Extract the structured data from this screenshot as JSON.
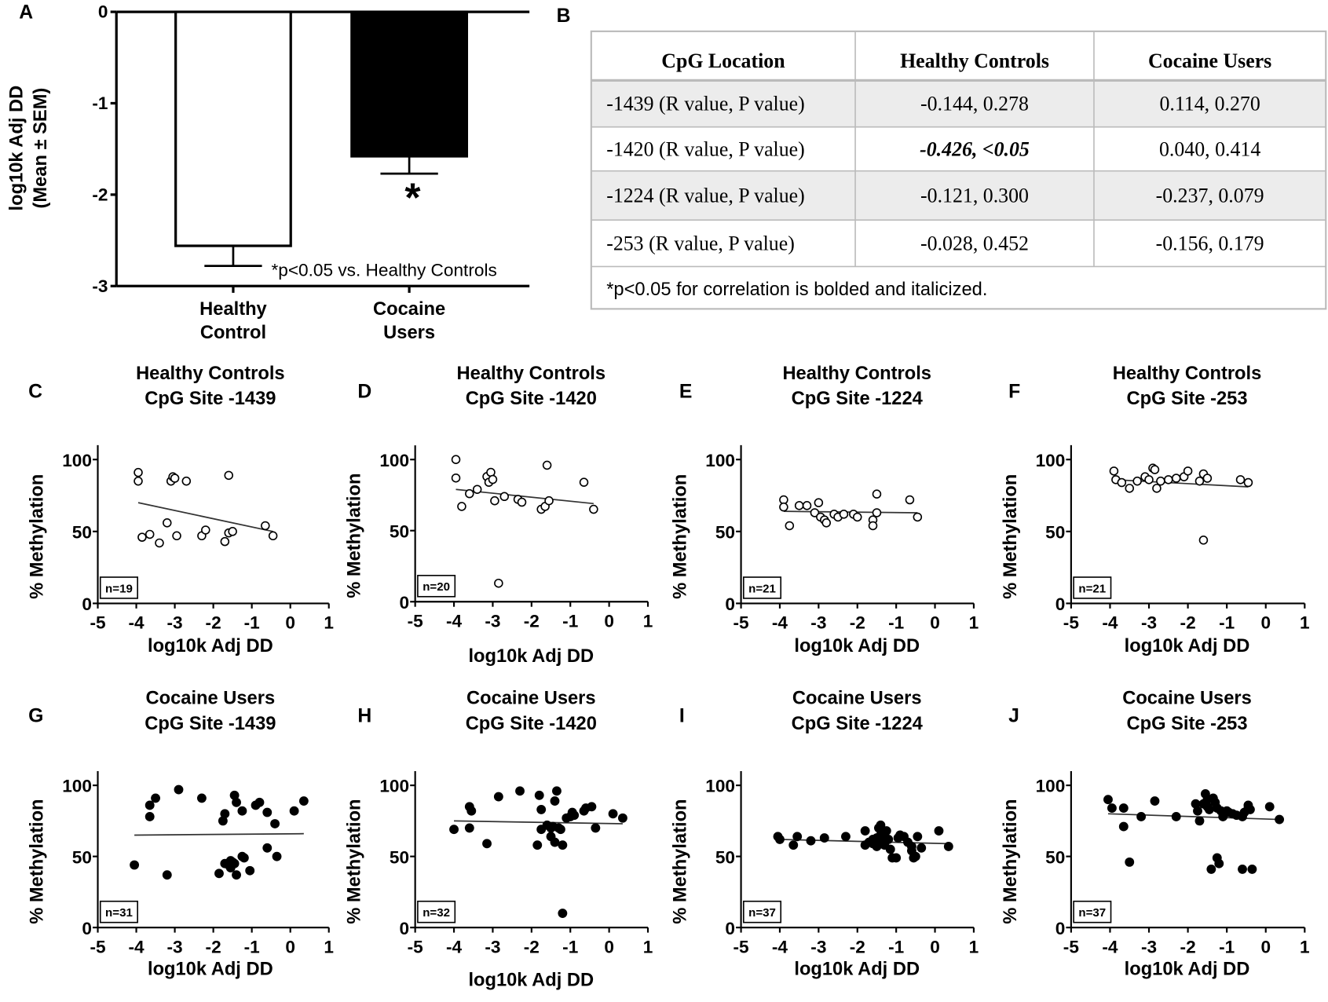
{
  "panel_letters": [
    "A",
    "B",
    "C",
    "D",
    "E",
    "F",
    "G",
    "H",
    "I",
    "J"
  ],
  "table": {
    "headers": [
      "CpG Location",
      "Healthy Controls",
      "Cocaine Users"
    ],
    "rows": [
      [
        "-1439 (R value,  P value)",
        "-0.144, 0.278",
        "0.114, 0.270"
      ],
      [
        "-1420 (R value,  P value)",
        "-0.426, <0.05",
        "0.040, 0.414"
      ],
      [
        "-1224 (R value,  P value)",
        "-0.121, 0.300",
        "-0.237, 0.079"
      ],
      [
        "-253 (R value,  P value)",
        "-0.028, 0.452",
        "-0.156, 0.179"
      ]
    ],
    "highlighted_cell": [
      1,
      1
    ],
    "footnote": "*p<0.05 for correlation is bolded and italicized."
  },
  "chart_data": [
    {
      "type": "bar",
      "panel": "A",
      "categories": [
        [
          "Healthy",
          "Control"
        ],
        [
          "Cocaine",
          "Users"
        ]
      ],
      "values": [
        -2.56,
        -1.58
      ],
      "sem": [
        0.22,
        0.19
      ],
      "colors": [
        "#ffffff",
        "#000000"
      ],
      "ylabel": [
        "log10k Adj DD",
        "(Mean ± SEM)"
      ],
      "ylim": [
        -3,
        0
      ],
      "yticks": [
        "0",
        "-1",
        "-2",
        "-3"
      ],
      "significance_marker": "*",
      "annotation": "*p<0.05 vs. Healthy Controls"
    },
    {
      "type": "scatter",
      "panel": "C",
      "title": [
        "Healthy Controls",
        "CpG Site -1439"
      ],
      "n_label": "n=19",
      "filled": false,
      "xlabel": "log10k Adj DD",
      "ylabel": "% Methylation",
      "xlim": [
        -5,
        1
      ],
      "ylim": [
        0,
        100
      ],
      "xticks": [
        "-5",
        "-4",
        "-3",
        "-2",
        "-1",
        "0",
        "1"
      ],
      "yticks": [
        "0",
        "50",
        "100"
      ],
      "points": [
        [
          -3.95,
          91
        ],
        [
          -3.95,
          85
        ],
        [
          -3.85,
          46
        ],
        [
          -3.65,
          48
        ],
        [
          -3.4,
          42
        ],
        [
          -3.2,
          56
        ],
        [
          -3.1,
          85
        ],
        [
          -3.05,
          88
        ],
        [
          -3.0,
          87
        ],
        [
          -2.95,
          47
        ],
        [
          -2.7,
          85
        ],
        [
          -2.3,
          47
        ],
        [
          -2.2,
          51
        ],
        [
          -1.7,
          43
        ],
        [
          -1.6,
          89
        ],
        [
          -1.6,
          49
        ],
        [
          -1.5,
          50
        ],
        [
          -0.65,
          54
        ],
        [
          -0.45,
          47
        ]
      ],
      "fit": [
        [
          -3.95,
          70
        ],
        [
          -0.45,
          50
        ]
      ]
    },
    {
      "type": "scatter",
      "panel": "D",
      "title": [
        "Healthy Controls",
        "CpG Site -1420"
      ],
      "n_label": "n=20",
      "filled": false,
      "xlabel": "log10k Adj DD",
      "ylabel": "% Methylation",
      "xlim": [
        -5,
        1
      ],
      "ylim": [
        0,
        100
      ],
      "xticks": [
        "-5",
        "-4",
        "-3",
        "-2",
        "-1",
        "0",
        "1"
      ],
      "yticks": [
        "0",
        "50",
        "100"
      ],
      "points": [
        [
          -3.95,
          100
        ],
        [
          -3.95,
          87
        ],
        [
          -3.8,
          67
        ],
        [
          -3.6,
          76
        ],
        [
          -3.4,
          79
        ],
        [
          -3.15,
          88
        ],
        [
          -3.1,
          84
        ],
        [
          -3.05,
          91
        ],
        [
          -3.0,
          86
        ],
        [
          -2.95,
          71
        ],
        [
          -2.85,
          13
        ],
        [
          -2.7,
          74
        ],
        [
          -2.35,
          72
        ],
        [
          -2.25,
          70
        ],
        [
          -1.75,
          65
        ],
        [
          -1.65,
          67
        ],
        [
          -1.6,
          96
        ],
        [
          -1.55,
          71
        ],
        [
          -0.65,
          84
        ],
        [
          -0.4,
          65
        ]
      ],
      "fit": [
        [
          -3.95,
          79
        ],
        [
          -0.4,
          69
        ]
      ]
    },
    {
      "type": "scatter",
      "panel": "E",
      "title": [
        "Healthy Controls",
        "CpG  Site -1224"
      ],
      "n_label": "n=21",
      "filled": false,
      "xlabel": "log10k Adj DD",
      "ylabel": "% Methylation",
      "xlim": [
        -5,
        1
      ],
      "ylim": [
        0,
        100
      ],
      "xticks": [
        "-5",
        "-4",
        "-3",
        "-2",
        "-1",
        "0",
        "1"
      ],
      "yticks": [
        "0",
        "50",
        "100"
      ],
      "points": [
        [
          -3.9,
          72
        ],
        [
          -3.9,
          67
        ],
        [
          -3.75,
          54
        ],
        [
          -3.5,
          68
        ],
        [
          -3.3,
          68
        ],
        [
          -3.1,
          63
        ],
        [
          -3.0,
          70
        ],
        [
          -2.95,
          60
        ],
        [
          -2.85,
          58
        ],
        [
          -2.8,
          56
        ],
        [
          -2.6,
          62
        ],
        [
          -2.5,
          60
        ],
        [
          -2.35,
          62
        ],
        [
          -2.1,
          62
        ],
        [
          -2.0,
          60
        ],
        [
          -1.6,
          58
        ],
        [
          -1.6,
          54
        ],
        [
          -1.5,
          63
        ],
        [
          -1.5,
          76
        ],
        [
          -0.65,
          72
        ],
        [
          -0.45,
          60
        ]
      ],
      "fit": [
        [
          -3.9,
          64
        ],
        [
          -0.45,
          63
        ]
      ]
    },
    {
      "type": "scatter",
      "panel": "F",
      "title": [
        "Healthy Controls",
        "CpG Site -253"
      ],
      "n_label": "n=21",
      "filled": false,
      "xlabel": "log10k Adj DD",
      "ylabel": "% Methylation",
      "xlim": [
        -5,
        1
      ],
      "ylim": [
        0,
        100
      ],
      "xticks": [
        "-5",
        "-4",
        "-3",
        "-2",
        "-1",
        "0",
        "1"
      ],
      "yticks": [
        "0",
        "50",
        "100"
      ],
      "points": [
        [
          -3.9,
          92
        ],
        [
          -3.85,
          86
        ],
        [
          -3.7,
          84
        ],
        [
          -3.5,
          80
        ],
        [
          -3.3,
          85
        ],
        [
          -3.1,
          88
        ],
        [
          -3.0,
          86
        ],
        [
          -2.9,
          94
        ],
        [
          -2.85,
          93
        ],
        [
          -2.8,
          80
        ],
        [
          -2.7,
          85
        ],
        [
          -2.5,
          86
        ],
        [
          -2.3,
          87
        ],
        [
          -2.1,
          88
        ],
        [
          -2.0,
          92
        ],
        [
          -1.7,
          85
        ],
        [
          -1.6,
          90
        ],
        [
          -1.5,
          87
        ],
        [
          -1.6,
          44
        ],
        [
          -0.65,
          86
        ],
        [
          -0.45,
          84
        ]
      ],
      "fit": [
        [
          -3.9,
          86
        ],
        [
          -0.45,
          81
        ]
      ]
    },
    {
      "type": "scatter",
      "panel": "G",
      "title": [
        "Cocaine Users",
        "CpG Site -1439"
      ],
      "n_label": "n=31",
      "filled": true,
      "xlabel": "log10k Adj DD",
      "ylabel": "% Methylation",
      "xlim": [
        -5,
        1
      ],
      "ylim": [
        0,
        100
      ],
      "xticks": [
        "-5",
        "-4",
        "-3",
        "-2",
        "-1",
        "0",
        "1"
      ],
      "yticks": [
        "0",
        "50",
        "100"
      ],
      "points": [
        [
          -4.05,
          44
        ],
        [
          -3.65,
          86
        ],
        [
          -3.65,
          78
        ],
        [
          -3.5,
          91
        ],
        [
          -3.2,
          37
        ],
        [
          -2.9,
          97
        ],
        [
          -2.3,
          91
        ],
        [
          -1.85,
          38
        ],
        [
          -1.75,
          75
        ],
        [
          -1.7,
          80
        ],
        [
          -1.7,
          45
        ],
        [
          -1.6,
          44
        ],
        [
          -1.55,
          42
        ],
        [
          -1.55,
          47
        ],
        [
          -1.5,
          46
        ],
        [
          -1.45,
          93
        ],
        [
          -1.45,
          45
        ],
        [
          -1.4,
          37
        ],
        [
          -1.4,
          88
        ],
        [
          -1.25,
          82
        ],
        [
          -1.25,
          50
        ],
        [
          -1.2,
          49
        ],
        [
          -1.05,
          40
        ],
        [
          -0.9,
          86
        ],
        [
          -0.8,
          88
        ],
        [
          -0.6,
          81
        ],
        [
          -0.6,
          56
        ],
        [
          -0.4,
          73
        ],
        [
          -0.35,
          50
        ],
        [
          0.1,
          82
        ],
        [
          0.35,
          89
        ]
      ],
      "fit": [
        [
          -4.05,
          65
        ],
        [
          0.35,
          66
        ]
      ]
    },
    {
      "type": "scatter",
      "panel": "H",
      "title": [
        "Cocaine Users",
        "CpG Site -1420"
      ],
      "n_label": "n=32",
      "filled": true,
      "xlabel": "log10k Adj DD",
      "ylabel": "% Methylation",
      "xlim": [
        -5,
        1
      ],
      "ylim": [
        0,
        100
      ],
      "xticks": [
        "-5",
        "-4",
        "-3",
        "-2",
        "-1",
        "0",
        "1"
      ],
      "yticks": [
        "0",
        "50",
        "100"
      ],
      "points": [
        [
          -4.0,
          69
        ],
        [
          -3.6,
          85
        ],
        [
          -3.55,
          82
        ],
        [
          -3.6,
          70
        ],
        [
          -3.15,
          59
        ],
        [
          -2.85,
          92
        ],
        [
          -2.3,
          96
        ],
        [
          -1.85,
          58
        ],
        [
          -1.8,
          93
        ],
        [
          -1.75,
          83
        ],
        [
          -1.75,
          69
        ],
        [
          -1.6,
          72
        ],
        [
          -1.5,
          64
        ],
        [
          -1.5,
          70
        ],
        [
          -1.45,
          71
        ],
        [
          -1.4,
          89
        ],
        [
          -1.4,
          60
        ],
        [
          -1.35,
          96
        ],
        [
          -1.3,
          70
        ],
        [
          -1.25,
          69
        ],
        [
          -1.2,
          58
        ],
        [
          -1.2,
          10
        ],
        [
          -1.1,
          77
        ],
        [
          -1.0,
          78
        ],
        [
          -0.95,
          81
        ],
        [
          -0.9,
          79
        ],
        [
          -0.65,
          82
        ],
        [
          -0.6,
          84
        ],
        [
          -0.45,
          85
        ],
        [
          -0.35,
          70
        ],
        [
          0.1,
          80
        ],
        [
          0.35,
          77
        ]
      ],
      "fit": [
        [
          -4.0,
          75
        ],
        [
          0.35,
          73
        ]
      ]
    },
    {
      "type": "scatter",
      "panel": "I",
      "title": [
        "Cocaine Users",
        "CpG Site -1224"
      ],
      "n_label": "n=37",
      "filled": true,
      "xlabel": "log10k Adj DD",
      "ylabel": "% Methylation",
      "xlim": [
        -5,
        1
      ],
      "ylim": [
        0,
        100
      ],
      "xticks": [
        "-5",
        "-4",
        "-3",
        "-2",
        "-1",
        "0",
        "1"
      ],
      "yticks": [
        "0",
        "50",
        "100"
      ],
      "points": [
        [
          -4.05,
          64
        ],
        [
          -4.0,
          62
        ],
        [
          -3.65,
          58
        ],
        [
          -3.55,
          64
        ],
        [
          -3.2,
          61
        ],
        [
          -2.85,
          63
        ],
        [
          -2.3,
          64
        ],
        [
          -1.8,
          68
        ],
        [
          -1.8,
          58
        ],
        [
          -1.7,
          60
        ],
        [
          -1.6,
          62
        ],
        [
          -1.6,
          59
        ],
        [
          -1.5,
          57
        ],
        [
          -1.5,
          63
        ],
        [
          -1.45,
          70
        ],
        [
          -1.4,
          72
        ],
        [
          -1.4,
          65
        ],
        [
          -1.35,
          60
        ],
        [
          -1.3,
          58
        ],
        [
          -1.3,
          67
        ],
        [
          -1.25,
          68
        ],
        [
          -1.2,
          62
        ],
        [
          -1.15,
          55
        ],
        [
          -1.1,
          49
        ],
        [
          -1.0,
          49
        ],
        [
          -0.95,
          63
        ],
        [
          -0.9,
          65
        ],
        [
          -0.8,
          64
        ],
        [
          -0.7,
          60
        ],
        [
          -0.6,
          57
        ],
        [
          -0.6,
          54
        ],
        [
          -0.55,
          49
        ],
        [
          -0.5,
          50
        ],
        [
          -0.45,
          64
        ],
        [
          -0.35,
          56
        ],
        [
          0.1,
          68
        ],
        [
          0.35,
          57
        ]
      ],
      "fit": [
        [
          -4.05,
          62
        ],
        [
          0.35,
          59
        ]
      ]
    },
    {
      "type": "scatter",
      "panel": "J",
      "title": [
        "Cocaine Users",
        "CpG Site -253"
      ],
      "n_label": "n=37",
      "filled": true,
      "xlabel": "log10k Adj DD",
      "ylabel": "% Methylation",
      "xlim": [
        -5,
        1
      ],
      "ylim": [
        0,
        100
      ],
      "xticks": [
        "-5",
        "-4",
        "-3",
        "-2",
        "-1",
        "0",
        "1"
      ],
      "yticks": [
        "0",
        "50",
        "100"
      ],
      "points": [
        [
          -4.05,
          90
        ],
        [
          -3.95,
          84
        ],
        [
          -3.65,
          84
        ],
        [
          -3.65,
          71
        ],
        [
          -3.5,
          46
        ],
        [
          -3.2,
          78
        ],
        [
          -2.85,
          89
        ],
        [
          -2.3,
          78
        ],
        [
          -1.8,
          87
        ],
        [
          -1.75,
          82
        ],
        [
          -1.7,
          75
        ],
        [
          -1.6,
          87
        ],
        [
          -1.55,
          94
        ],
        [
          -1.5,
          90
        ],
        [
          -1.5,
          85
        ],
        [
          -1.45,
          83
        ],
        [
          -1.4,
          41
        ],
        [
          -1.35,
          91
        ],
        [
          -1.3,
          88
        ],
        [
          -1.25,
          49
        ],
        [
          -1.25,
          84
        ],
        [
          -1.2,
          45
        ],
        [
          -1.15,
          82
        ],
        [
          -1.1,
          78
        ],
        [
          -1.0,
          82
        ],
        [
          -0.95,
          81
        ],
        [
          -0.85,
          80
        ],
        [
          -0.75,
          79
        ],
        [
          -0.6,
          41
        ],
        [
          -0.6,
          78
        ],
        [
          -0.55,
          81
        ],
        [
          -0.45,
          84
        ],
        [
          -0.45,
          86
        ],
        [
          -0.4,
          83
        ],
        [
          -0.35,
          41
        ],
        [
          0.1,
          85
        ],
        [
          0.35,
          76
        ]
      ],
      "fit": [
        [
          -4.05,
          80
        ],
        [
          0.35,
          76
        ]
      ]
    }
  ]
}
